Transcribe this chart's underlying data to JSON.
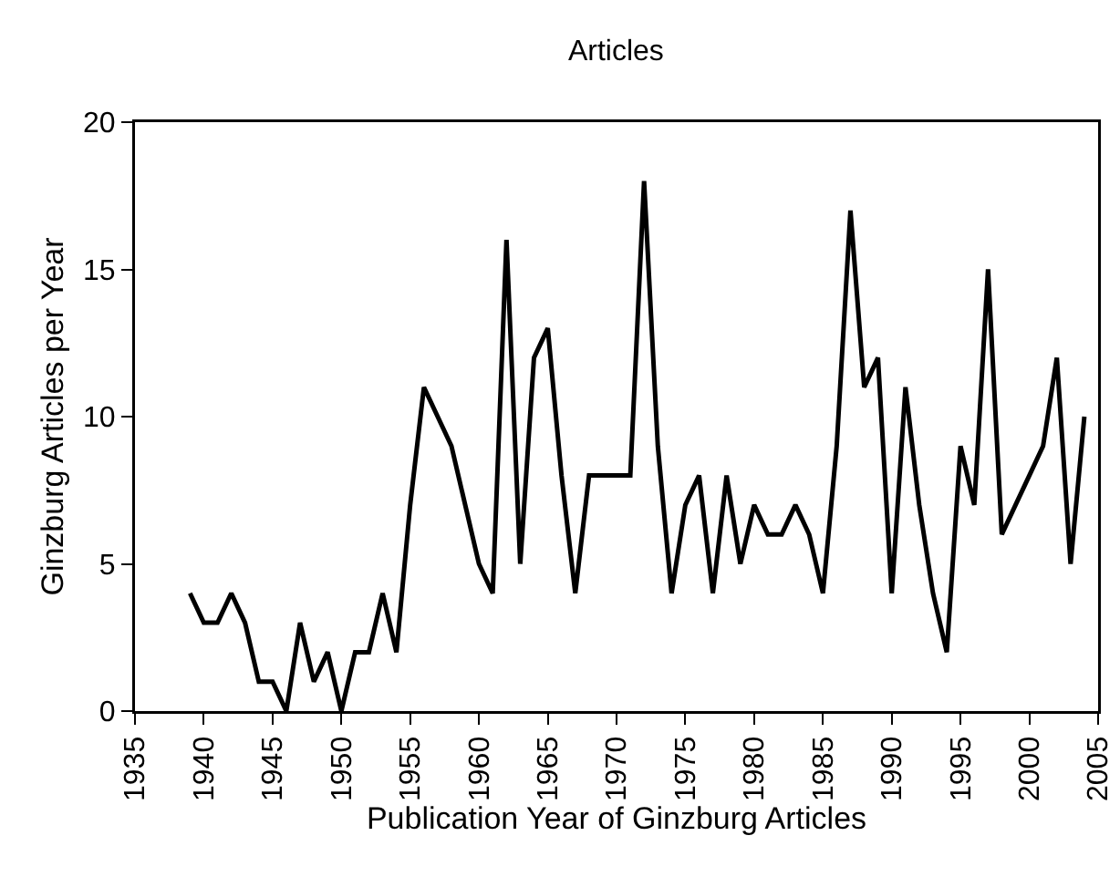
{
  "chart_data": {
    "type": "line",
    "title": "Articles",
    "xlabel": "Publication Year of Ginzburg Articles",
    "ylabel": "Ginzburg Articles per Year",
    "x": [
      1939,
      1940,
      1941,
      1942,
      1943,
      1944,
      1945,
      1946,
      1947,
      1948,
      1949,
      1950,
      1951,
      1952,
      1953,
      1954,
      1955,
      1956,
      1957,
      1958,
      1959,
      1960,
      1961,
      1962,
      1963,
      1964,
      1965,
      1966,
      1967,
      1968,
      1969,
      1970,
      1971,
      1972,
      1973,
      1974,
      1975,
      1976,
      1977,
      1978,
      1979,
      1980,
      1981,
      1982,
      1983,
      1984,
      1985,
      1986,
      1987,
      1988,
      1989,
      1990,
      1991,
      1992,
      1993,
      1994,
      1995,
      1996,
      1997,
      1998,
      1999,
      2000,
      2001,
      2002,
      2003,
      2004
    ],
    "series": [
      {
        "color": "#000000",
        "values": [
          4,
          3,
          3,
          4,
          3,
          1,
          1,
          0,
          3,
          1,
          2,
          0,
          2,
          2,
          4,
          2,
          7,
          11,
          10,
          9,
          7,
          5,
          4,
          16,
          5,
          12,
          13,
          8,
          4,
          8,
          8,
          8,
          8,
          18,
          9,
          4,
          7,
          8,
          4,
          8,
          5,
          7,
          6,
          6,
          7,
          6,
          4,
          9,
          17,
          11,
          12,
          4,
          11,
          7,
          4,
          2,
          9,
          7,
          15,
          6,
          7,
          8,
          9,
          12,
          5,
          10
        ]
      }
    ],
    "xlim": [
      1935,
      2005
    ],
    "xticks": [
      1935,
      1940,
      1945,
      1950,
      1955,
      1960,
      1965,
      1970,
      1975,
      1980,
      1985,
      1990,
      1995,
      2000,
      2005
    ],
    "ylim": [
      0,
      20
    ],
    "yticks": [
      0,
      5,
      10,
      15,
      20
    ],
    "marker": "none",
    "line_style": "solid"
  }
}
